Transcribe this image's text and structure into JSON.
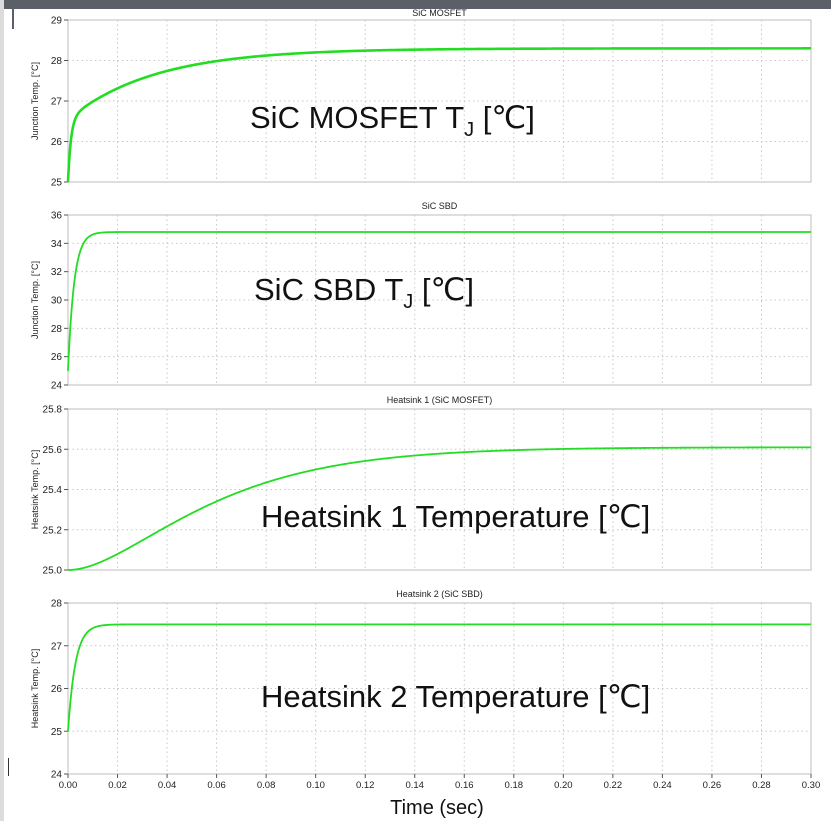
{
  "x_axis_label": "Time (sec)",
  "colors": {
    "trace": "#22dd22",
    "grid": "#c8c8c8",
    "frame": "#bdbdbd"
  },
  "chart_data": [
    {
      "type": "line",
      "title": "SiC MOSFET",
      "ylabel": "Junction Temp. [°C]",
      "overlay_label": "SiC MOSFET  T",
      "overlay_sub": "J",
      "overlay_unit": " [℃]",
      "xlim": [
        0,
        0.3
      ],
      "ylim": [
        25,
        29
      ],
      "yticks": [
        "25",
        "26",
        "27",
        "28",
        "29"
      ],
      "model": {
        "y0": 25.0,
        "fast_amp": 1.55,
        "fast_tau": 0.0012,
        "slow_amp": 1.75,
        "slow_tau": 0.035
      }
    },
    {
      "type": "line",
      "title": "SiC SBD",
      "ylabel": "Junction Temp. [°C]",
      "overlay_label": "SiC SBD  T",
      "overlay_sub": "J",
      "overlay_unit": " [℃]",
      "xlim": [
        0,
        0.3
      ],
      "ylim": [
        24,
        36
      ],
      "yticks": [
        "24",
        "26",
        "28",
        "30",
        "32",
        "34",
        "36"
      ],
      "model": {
        "y0": 25.0,
        "fast_amp": 9.8,
        "fast_tau": 0.0025,
        "slow_amp": 0.0,
        "slow_tau": 0.05
      }
    },
    {
      "type": "line",
      "title": "Heatsink 1 (SiC MOSFET)",
      "ylabel": "Heatsink Temp. [°C]",
      "overlay_label": "Heatsink 1 Temperature [℃]",
      "xlim": [
        0,
        0.3
      ],
      "ylim": [
        25,
        25.8
      ],
      "yticks": [
        "25.0",
        "25.2",
        "25.4",
        "25.6",
        "25.8"
      ],
      "model": {
        "y0": 25.0,
        "sshape_amp": 0.61,
        "sshape_tau": 0.032
      }
    },
    {
      "type": "line",
      "title": "Heatsink 2 (SiC SBD)",
      "ylabel": "Heatsink Temp. [°C]",
      "overlay_label": "Heatsink 2 Temperature [℃]",
      "xlim": [
        0,
        0.3
      ],
      "ylim": [
        24,
        28
      ],
      "yticks": [
        "24",
        "25",
        "26",
        "27",
        "28"
      ],
      "xticks": [
        "0.00",
        "0.02",
        "0.04",
        "0.06",
        "0.08",
        "0.10",
        "0.12",
        "0.14",
        "0.16",
        "0.18",
        "0.20",
        "0.22",
        "0.24",
        "0.26",
        "0.28",
        "0.30"
      ],
      "model": {
        "y0": 25.0,
        "fast_amp": 2.5,
        "fast_tau": 0.003,
        "slow_amp": 0.0,
        "slow_tau": 0.05
      }
    }
  ]
}
